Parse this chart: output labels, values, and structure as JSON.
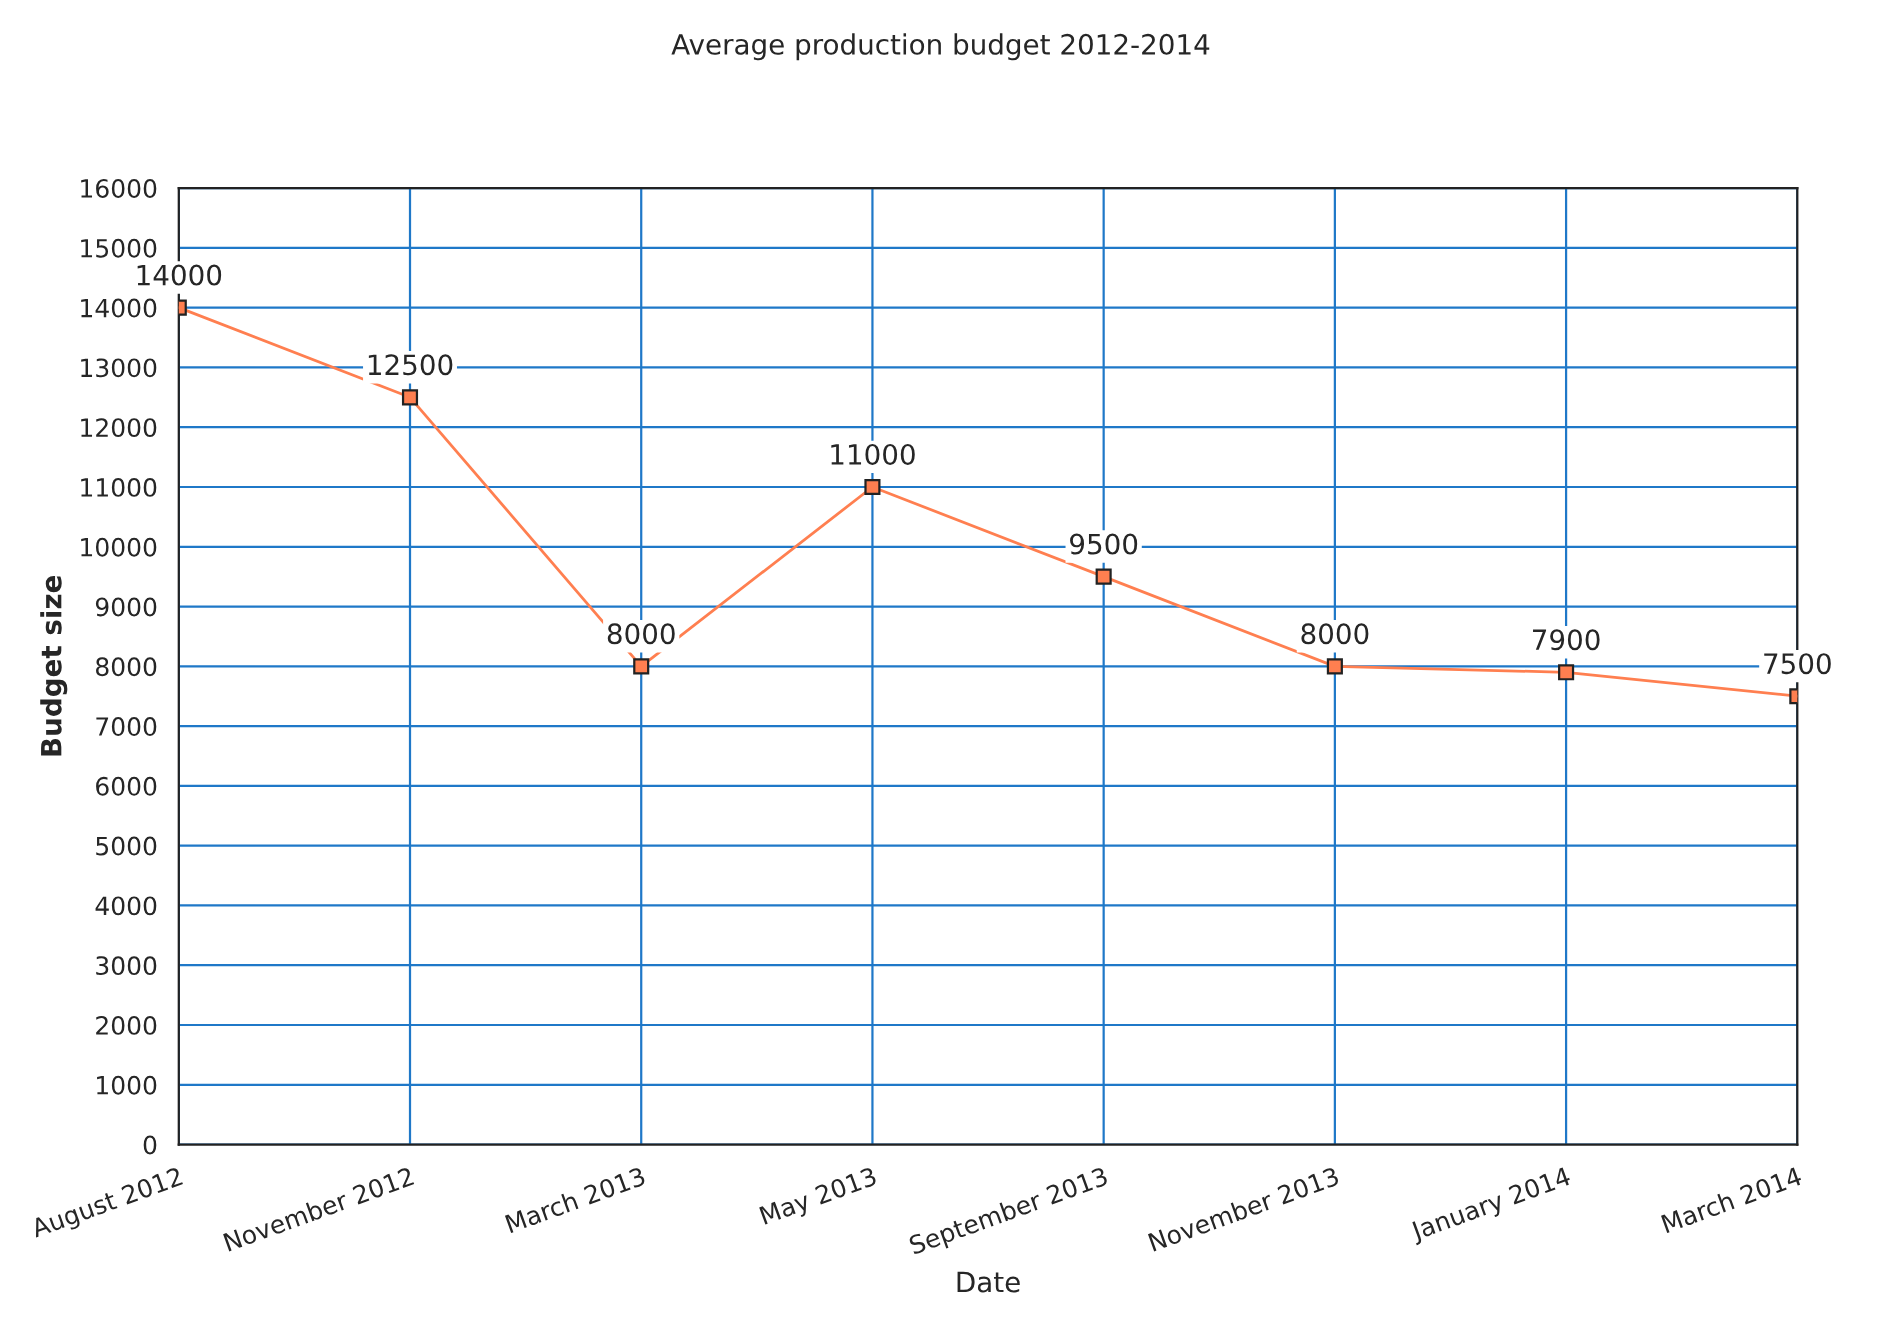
{
  "chart_data": {
    "type": "line",
    "title": "Average production budget 2012-2014",
    "xlabel": "Date",
    "ylabel": "Budget size",
    "categories": [
      "August 2012",
      "November 2012",
      "March 2013",
      "May 2013",
      "September 2013",
      "November 2013",
      "January 2014",
      "March 2014"
    ],
    "series": [
      {
        "color": "#ff7f50",
        "values": [
          14000,
          12500,
          8000,
          11000,
          9500,
          8000,
          7900,
          7500
        ]
      }
    ],
    "ylim": [
      0,
      16000
    ],
    "yticks": [
      0,
      1000,
      2000,
      3000,
      4000,
      5000,
      6000,
      7000,
      8000,
      9000,
      10000,
      11000,
      12000,
      13000,
      14000,
      15000,
      16000
    ],
    "grid": true,
    "data_labels": true,
    "marker": "square",
    "line_style": "solid"
  }
}
